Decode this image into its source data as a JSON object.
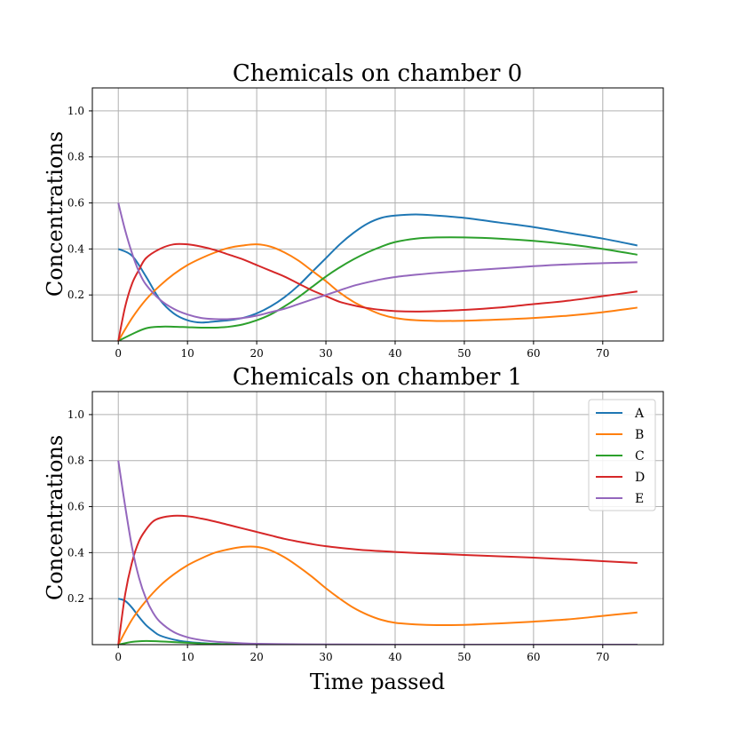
{
  "chart_data": [
    {
      "type": "line",
      "title": "Chemicals on chamber 0",
      "xlabel": "",
      "ylabel": "Concentrations",
      "xlim": [
        -3.75,
        78.75
      ],
      "ylim": [
        0,
        1.1
      ],
      "xticks": [
        0,
        10,
        20,
        30,
        40,
        50,
        60,
        70
      ],
      "yticks": [
        0.2,
        0.4,
        0.6,
        0.8,
        1.0
      ],
      "ytick_labels": [
        "0.2",
        "0.4",
        "0.6",
        "0.8",
        "1.0"
      ],
      "grid": true,
      "legend": null,
      "series": [
        {
          "name": "A",
          "color": "#1f77b4",
          "x": [
            0,
            2,
            4,
            6,
            8,
            10,
            12,
            14,
            16,
            18,
            20,
            22,
            24,
            26,
            28,
            30,
            32,
            34,
            36,
            38,
            40,
            43,
            46,
            50,
            55,
            60,
            65,
            70,
            75
          ],
          "y": [
            0.4,
            0.37,
            0.28,
            0.18,
            0.12,
            0.09,
            0.08,
            0.085,
            0.09,
            0.1,
            0.12,
            0.15,
            0.19,
            0.24,
            0.3,
            0.36,
            0.42,
            0.47,
            0.51,
            0.535,
            0.545,
            0.55,
            0.545,
            0.535,
            0.515,
            0.495,
            0.47,
            0.445,
            0.415
          ]
        },
        {
          "name": "B",
          "color": "#ff7f0e",
          "x": [
            0,
            2,
            4,
            6,
            8,
            10,
            12,
            14,
            16,
            18,
            20,
            22,
            24,
            26,
            28,
            30,
            32,
            34,
            36,
            38,
            40,
            43,
            46,
            50,
            55,
            60,
            65,
            70,
            75
          ],
          "y": [
            0,
            0.1,
            0.18,
            0.24,
            0.29,
            0.33,
            0.36,
            0.385,
            0.405,
            0.415,
            0.42,
            0.41,
            0.385,
            0.35,
            0.305,
            0.26,
            0.21,
            0.17,
            0.14,
            0.115,
            0.1,
            0.09,
            0.087,
            0.088,
            0.093,
            0.1,
            0.11,
            0.125,
            0.145
          ]
        },
        {
          "name": "C",
          "color": "#2ca02c",
          "x": [
            0,
            2,
            4,
            6,
            8,
            10,
            12,
            14,
            16,
            18,
            20,
            22,
            24,
            26,
            28,
            30,
            32,
            34,
            36,
            38,
            40,
            43,
            46,
            50,
            55,
            60,
            65,
            70,
            75
          ],
          "y": [
            0,
            0.03,
            0.055,
            0.062,
            0.062,
            0.06,
            0.058,
            0.058,
            0.062,
            0.072,
            0.09,
            0.115,
            0.15,
            0.19,
            0.235,
            0.28,
            0.32,
            0.355,
            0.385,
            0.41,
            0.43,
            0.445,
            0.45,
            0.45,
            0.445,
            0.435,
            0.42,
            0.4,
            0.375
          ]
        },
        {
          "name": "D",
          "color": "#d62728",
          "x": [
            0,
            1,
            2,
            3,
            4,
            6,
            8,
            10,
            12,
            14,
            16,
            18,
            20,
            22,
            24,
            26,
            28,
            30,
            32,
            34,
            36,
            38,
            40,
            43,
            46,
            50,
            55,
            60,
            65,
            70,
            75
          ],
          "y": [
            0,
            0.15,
            0.25,
            0.31,
            0.36,
            0.4,
            0.42,
            0.42,
            0.41,
            0.395,
            0.375,
            0.355,
            0.33,
            0.305,
            0.28,
            0.25,
            0.22,
            0.195,
            0.17,
            0.155,
            0.143,
            0.135,
            0.13,
            0.128,
            0.13,
            0.135,
            0.145,
            0.16,
            0.175,
            0.195,
            0.215
          ]
        },
        {
          "name": "E",
          "color": "#9467bd",
          "x": [
            0,
            1,
            2,
            3,
            4,
            6,
            8,
            10,
            12,
            14,
            16,
            18,
            20,
            22,
            24,
            26,
            28,
            30,
            32,
            34,
            36,
            38,
            40,
            43,
            46,
            50,
            55,
            60,
            65,
            70,
            75
          ],
          "y": [
            0.6,
            0.48,
            0.38,
            0.3,
            0.245,
            0.18,
            0.14,
            0.115,
            0.1,
            0.095,
            0.095,
            0.1,
            0.11,
            0.125,
            0.14,
            0.16,
            0.18,
            0.2,
            0.22,
            0.24,
            0.255,
            0.268,
            0.278,
            0.288,
            0.296,
            0.305,
            0.315,
            0.325,
            0.333,
            0.338,
            0.342
          ]
        }
      ]
    },
    {
      "type": "line",
      "title": "Chemicals on chamber 1",
      "xlabel": "Time passed",
      "ylabel": "Concentrations",
      "xlim": [
        -3.75,
        78.75
      ],
      "ylim": [
        0,
        1.1
      ],
      "xticks": [
        0,
        10,
        20,
        30,
        40,
        50,
        60,
        70
      ],
      "yticks": [
        0.2,
        0.4,
        0.6,
        0.8,
        1.0
      ],
      "ytick_labels": [
        "0.2",
        "0.4",
        "0.6",
        "0.8",
        "1.0"
      ],
      "grid": true,
      "legend": "top-right",
      "series": [
        {
          "name": "A",
          "color": "#1f77b4",
          "x": [
            0,
            1,
            2,
            3,
            4,
            5,
            6,
            8,
            10,
            12,
            14,
            16,
            20,
            25,
            30,
            40,
            50,
            60,
            70,
            75
          ],
          "y": [
            0.2,
            0.19,
            0.16,
            0.12,
            0.085,
            0.06,
            0.04,
            0.022,
            0.012,
            0.007,
            0.004,
            0.002,
            0.001,
            0,
            0,
            0,
            0,
            0,
            0,
            0
          ]
        },
        {
          "name": "B",
          "color": "#ff7f0e",
          "x": [
            0,
            2,
            4,
            6,
            8,
            10,
            12,
            14,
            16,
            18,
            20,
            22,
            24,
            26,
            28,
            30,
            32,
            34,
            36,
            38,
            40,
            43,
            46,
            50,
            55,
            60,
            65,
            70,
            75
          ],
          "y": [
            0,
            0.11,
            0.19,
            0.255,
            0.305,
            0.345,
            0.375,
            0.4,
            0.415,
            0.425,
            0.425,
            0.41,
            0.38,
            0.34,
            0.295,
            0.245,
            0.2,
            0.16,
            0.13,
            0.108,
            0.095,
            0.088,
            0.085,
            0.086,
            0.092,
            0.1,
            0.11,
            0.125,
            0.14
          ]
        },
        {
          "name": "C",
          "color": "#2ca02c",
          "x": [
            0,
            2,
            4,
            6,
            8,
            10,
            12,
            14,
            16,
            20,
            25,
            30,
            40,
            50,
            60,
            70,
            75
          ],
          "y": [
            0,
            0.012,
            0.016,
            0.014,
            0.011,
            0.008,
            0.005,
            0.003,
            0.002,
            0.001,
            0,
            0,
            0,
            0,
            0,
            0,
            0
          ]
        },
        {
          "name": "D",
          "color": "#d62728",
          "x": [
            0,
            1,
            2,
            3,
            4,
            5,
            6,
            8,
            10,
            12,
            14,
            16,
            18,
            20,
            22,
            24,
            26,
            28,
            30,
            33,
            36,
            40,
            45,
            50,
            55,
            60,
            65,
            70,
            75
          ],
          "y": [
            0,
            0.22,
            0.36,
            0.45,
            0.5,
            0.535,
            0.55,
            0.56,
            0.558,
            0.548,
            0.535,
            0.52,
            0.505,
            0.49,
            0.475,
            0.46,
            0.448,
            0.437,
            0.428,
            0.418,
            0.41,
            0.403,
            0.396,
            0.39,
            0.384,
            0.378,
            0.371,
            0.363,
            0.355
          ]
        },
        {
          "name": "E",
          "color": "#9467bd",
          "x": [
            0,
            1,
            2,
            3,
            4,
            5,
            6,
            8,
            10,
            12,
            14,
            16,
            18,
            20,
            25,
            30,
            40,
            50,
            60,
            70,
            75
          ],
          "y": [
            0.8,
            0.6,
            0.42,
            0.29,
            0.2,
            0.14,
            0.1,
            0.055,
            0.032,
            0.02,
            0.013,
            0.009,
            0.006,
            0.004,
            0.002,
            0.001,
            0,
            0,
            0,
            0,
            0
          ]
        }
      ]
    }
  ]
}
